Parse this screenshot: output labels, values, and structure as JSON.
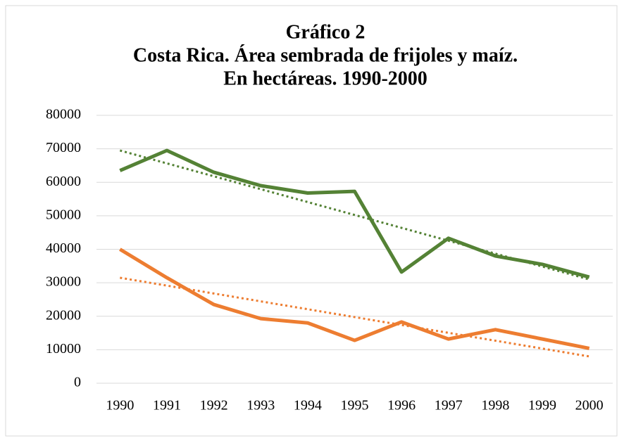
{
  "chart_data": {
    "type": "line",
    "title": [
      "Gráfico 2",
      "Costa Rica. Área sembrada de frijoles y maíz.",
      "En hectáreas. 1990-2000"
    ],
    "categories": [
      "1990",
      "1991",
      "1992",
      "1993",
      "1994",
      "1995",
      "1996",
      "1997",
      "1998",
      "1999",
      "2000"
    ],
    "series": [
      {
        "color": "#548235",
        "dash": "solid",
        "values": [
          63500,
          69500,
          63000,
          59000,
          56800,
          57300,
          33200,
          43300,
          38000,
          35500,
          31700
        ]
      },
      {
        "color": "#ed7d31",
        "dash": "solid",
        "values": [
          40000,
          31500,
          23500,
          19300,
          18000,
          12800,
          18300,
          13200,
          16000,
          13200,
          10400
        ]
      },
      {
        "color": "#548235",
        "dash": "dotted",
        "values": [
          69500,
          65650,
          61800,
          57950,
          54100,
          50250,
          46400,
          42550,
          38700,
          34850,
          31000
        ]
      },
      {
        "color": "#ed7d31",
        "dash": "dotted",
        "values": [
          31500,
          29150,
          26800,
          24450,
          22100,
          19750,
          17400,
          15050,
          12700,
          10350,
          8000
        ]
      }
    ],
    "ylim": [
      0,
      80000
    ],
    "yticks": [
      0,
      10000,
      20000,
      30000,
      40000,
      50000,
      60000,
      70000,
      80000
    ],
    "grid": true
  }
}
